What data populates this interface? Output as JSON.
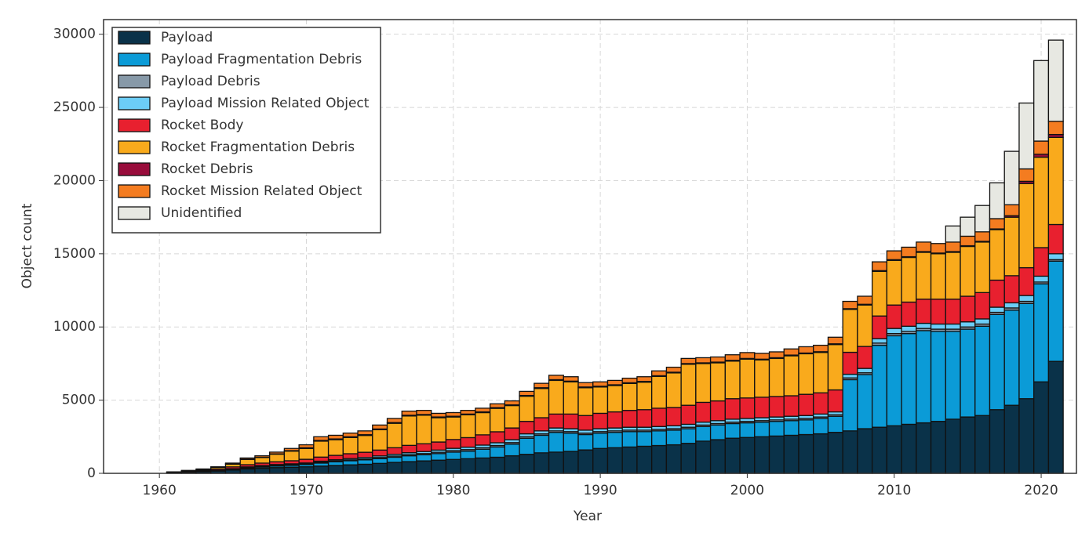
{
  "chart_data": {
    "type": "stacked_bar",
    "xlabel": "Year",
    "ylabel": "Object count",
    "x": [
      1961,
      1962,
      1963,
      1964,
      1965,
      1966,
      1967,
      1968,
      1969,
      1970,
      1971,
      1972,
      1973,
      1974,
      1975,
      1976,
      1977,
      1978,
      1979,
      1980,
      1981,
      1982,
      1983,
      1984,
      1985,
      1986,
      1987,
      1988,
      1989,
      1990,
      1991,
      1992,
      1993,
      1994,
      1995,
      1996,
      1997,
      1998,
      1999,
      2000,
      2001,
      2002,
      2003,
      2004,
      2005,
      2006,
      2007,
      2008,
      2009,
      2010,
      2011,
      2012,
      2013,
      2014,
      2015,
      2016,
      2017,
      2018,
      2019,
      2020,
      2021
    ],
    "xlim": [
      1956.2,
      2022.4
    ],
    "xticks": [
      1960,
      1970,
      1980,
      1990,
      2000,
      2010,
      2020
    ],
    "ylim": [
      0,
      31000
    ],
    "yticks": [
      0,
      5000,
      10000,
      15000,
      20000,
      25000,
      30000
    ],
    "grid": true,
    "legend": "upper left",
    "series": [
      {
        "name": "Payload",
        "color": "#0a3249",
        "values": [
          40,
          70,
          110,
          160,
          230,
          300,
          350,
          390,
          420,
          450,
          500,
          540,
          580,
          620,
          680,
          750,
          800,
          850,
          900,
          950,
          1000,
          1050,
          1100,
          1200,
          1300,
          1400,
          1450,
          1500,
          1600,
          1700,
          1750,
          1800,
          1850,
          1900,
          1950,
          2050,
          2200,
          2300,
          2400,
          2450,
          2500,
          2550,
          2600,
          2650,
          2700,
          2800,
          2900,
          3050,
          3150,
          3250,
          3350,
          3450,
          3550,
          3700,
          3850,
          3950,
          4350,
          4650,
          5100,
          6250,
          7650
        ]
      },
      {
        "name": "Payload Fragmentation Debris",
        "color": "#0b9bd7",
        "values": [
          0,
          0,
          0,
          0,
          20,
          50,
          80,
          100,
          120,
          150,
          200,
          250,
          280,
          300,
          330,
          350,
          400,
          420,
          450,
          500,
          520,
          600,
          700,
          800,
          1100,
          1200,
          1350,
          1250,
          1050,
          1050,
          1050,
          1050,
          1000,
          1000,
          1000,
          1000,
          1000,
          1000,
          1000,
          1000,
          1000,
          1000,
          1000,
          1000,
          1050,
          1100,
          3500,
          3700,
          5600,
          6150,
          6200,
          6300,
          6150,
          6000,
          6000,
          6100,
          6500,
          6500,
          6500,
          6700,
          6850
        ]
      },
      {
        "name": "Payload Debris",
        "color": "#8799a8",
        "values": [
          0,
          0,
          0,
          0,
          20,
          30,
          40,
          50,
          50,
          50,
          60,
          60,
          60,
          60,
          70,
          80,
          80,
          80,
          90,
          100,
          100,
          100,
          100,
          100,
          100,
          100,
          100,
          100,
          100,
          100,
          100,
          100,
          100,
          100,
          100,
          100,
          100,
          100,
          100,
          100,
          100,
          100,
          100,
          100,
          100,
          100,
          120,
          120,
          150,
          150,
          150,
          150,
          150,
          150,
          150,
          150,
          150,
          150,
          150,
          120,
          100
        ]
      },
      {
        "name": "Payload Mission Related Object",
        "color": "#6ccdf6",
        "values": [
          10,
          20,
          30,
          40,
          50,
          60,
          60,
          60,
          60,
          60,
          70,
          80,
          90,
          100,
          110,
          120,
          130,
          140,
          150,
          160,
          170,
          180,
          190,
          200,
          200,
          200,
          200,
          200,
          200,
          200,
          200,
          200,
          200,
          200,
          200,
          200,
          200,
          200,
          200,
          200,
          200,
          200,
          200,
          200,
          200,
          200,
          250,
          300,
          300,
          350,
          350,
          350,
          350,
          350,
          350,
          350,
          350,
          350,
          400,
          400,
          400
        ]
      },
      {
        "name": "Rocket Body",
        "color": "#e8202f",
        "values": [
          20,
          40,
          60,
          90,
          120,
          150,
          170,
          190,
          210,
          250,
          280,
          300,
          330,
          360,
          400,
          450,
          500,
          530,
          550,
          600,
          650,
          700,
          750,
          800,
          850,
          900,
          950,
          1000,
          1000,
          1050,
          1100,
          1150,
          1200,
          1250,
          1250,
          1300,
          1350,
          1350,
          1400,
          1400,
          1400,
          1400,
          1400,
          1450,
          1450,
          1500,
          1500,
          1500,
          1550,
          1600,
          1650,
          1650,
          1700,
          1700,
          1750,
          1800,
          1850,
          1850,
          1900,
          1950,
          2000
        ]
      },
      {
        "name": "Rocket Fragmentation Debris",
        "color": "#f9aa1c",
        "values": [
          20,
          40,
          60,
          110,
          190,
          360,
          380,
          520,
          660,
          740,
          1090,
          1070,
          1110,
          1150,
          1390,
          1670,
          2010,
          1950,
          1660,
          1540,
          1560,
          1520,
          1600,
          1530,
          1720,
          2000,
          2300,
          2200,
          1900,
          1800,
          1800,
          1840,
          1880,
          2170,
          2360,
          2800,
          2650,
          2600,
          2570,
          2650,
          2550,
          2600,
          2730,
          2770,
          2760,
          3100,
          2930,
          2830,
          3050,
          3050,
          3050,
          3200,
          3100,
          3200,
          3400,
          3450,
          3450,
          4000,
          5750,
          6180,
          5950
        ]
      },
      {
        "name": "Rocket Debris",
        "color": "#980c3b",
        "values": [
          0,
          10,
          10,
          10,
          10,
          20,
          20,
          20,
          30,
          50,
          50,
          50,
          50,
          50,
          50,
          50,
          50,
          50,
          50,
          50,
          50,
          50,
          50,
          50,
          50,
          50,
          50,
          50,
          50,
          50,
          50,
          50,
          50,
          50,
          50,
          50,
          50,
          50,
          50,
          50,
          50,
          50,
          50,
          50,
          50,
          50,
          50,
          50,
          50,
          50,
          50,
          50,
          50,
          50,
          50,
          50,
          50,
          100,
          150,
          200,
          200
        ]
      },
      {
        "name": "Rocket Mission Related Object",
        "color": "#f47c20",
        "values": [
          10,
          20,
          30,
          40,
          60,
          80,
          100,
          120,
          150,
          200,
          250,
          250,
          250,
          260,
          270,
          280,
          280,
          280,
          250,
          250,
          250,
          250,
          260,
          270,
          280,
          300,
          300,
          300,
          300,
          300,
          300,
          310,
          320,
          330,
          340,
          350,
          350,
          350,
          380,
          400,
          400,
          400,
          420,
          430,
          440,
          450,
          500,
          550,
          600,
          600,
          650,
          650,
          650,
          650,
          650,
          650,
          700,
          750,
          850,
          900,
          900
        ]
      },
      {
        "name": "Unidentified",
        "color": "#e7e8e2",
        "values": [
          0,
          0,
          0,
          0,
          0,
          0,
          0,
          0,
          0,
          0,
          0,
          0,
          0,
          0,
          0,
          0,
          0,
          0,
          0,
          0,
          0,
          0,
          0,
          0,
          0,
          0,
          0,
          0,
          0,
          0,
          0,
          0,
          0,
          0,
          0,
          0,
          0,
          0,
          0,
          0,
          0,
          0,
          0,
          0,
          0,
          0,
          0,
          0,
          0,
          0,
          0,
          0,
          0,
          1100,
          1300,
          1800,
          2450,
          3650,
          4500,
          5500,
          5550
        ]
      }
    ]
  }
}
